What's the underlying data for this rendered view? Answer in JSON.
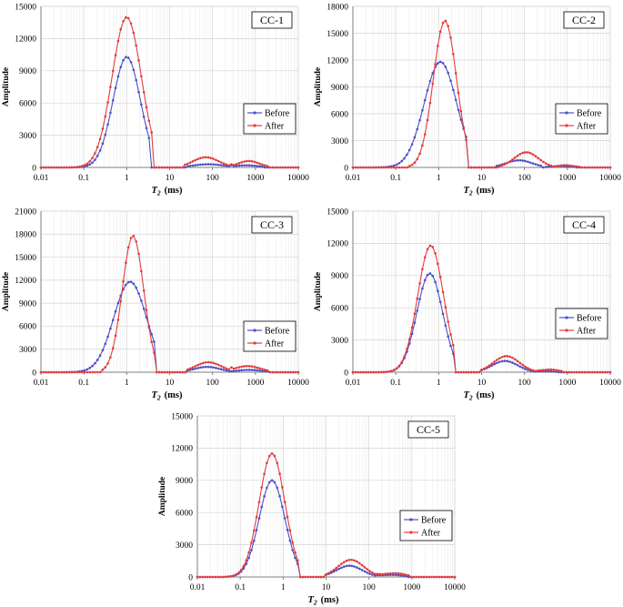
{
  "chart_data": [
    {
      "type": "line",
      "title": "CC-1",
      "xlabel": "T2 (ms)",
      "xlabel_main": "T",
      "xlabel_sub": "2",
      "xlabel_unit": "(ms)",
      "ylabel": "Amplitude",
      "xscale": "log",
      "xlim": [
        0.01,
        10000
      ],
      "xticks": [
        "0.01",
        "0.1",
        "1",
        "10",
        "100",
        "1000",
        "10000"
      ],
      "ylim": [
        0,
        15000
      ],
      "yticks": [
        "0",
        "3000",
        "6000",
        "9000",
        "12000",
        "15000"
      ],
      "grid": true,
      "legend_position": "right",
      "series": [
        {
          "name": "Before",
          "color": "#4a4fc8",
          "peaks": [
            {
              "x0": 1.0,
              "height": 10300,
              "width": 0.32,
              "lo": 0.05,
              "hi": 3.8
            },
            {
              "x0": 80,
              "height": 300,
              "width": 0.35,
              "lo": 25,
              "hi": 300
            },
            {
              "x0": 600,
              "height": 200,
              "width": 0.3,
              "lo": 250,
              "hi": 1500
            }
          ]
        },
        {
          "name": "After",
          "color": "#e23c3c",
          "peaks": [
            {
              "x0": 1.0,
              "height": 14000,
              "width": 0.34,
              "lo": 0.05,
              "hi": 4.2
            },
            {
              "x0": 70,
              "height": 950,
              "width": 0.3,
              "lo": 20,
              "hi": 300
            },
            {
              "x0": 700,
              "height": 600,
              "width": 0.25,
              "lo": 250,
              "hi": 2000
            }
          ]
        }
      ]
    },
    {
      "type": "line",
      "title": "CC-2",
      "xlabel": "T2 (ms)",
      "xlabel_main": "T",
      "xlabel_sub": "2",
      "xlabel_unit": "(ms)",
      "ylabel": "Amplitude",
      "xscale": "log",
      "xlim": [
        0.01,
        10000
      ],
      "xticks": [
        "0.01",
        "0.1",
        "1",
        "10",
        "100",
        "1000",
        "10000"
      ],
      "ylim": [
        0,
        18000
      ],
      "yticks": [
        "0",
        "3000",
        "6000",
        "9000",
        "12000",
        "15000",
        "18000"
      ],
      "grid": true,
      "legend_position": "right",
      "series": [
        {
          "name": "Before",
          "color": "#4a4fc8",
          "peaks": [
            {
              "x0": 1.1,
              "height": 11800,
              "width": 0.38,
              "lo": 0.03,
              "hi": 4.5
            },
            {
              "x0": 75,
              "height": 800,
              "width": 0.3,
              "lo": 20,
              "hi": 250
            },
            {
              "x0": 700,
              "height": 150,
              "width": 0.25,
              "lo": 300,
              "hi": 1500
            }
          ]
        },
        {
          "name": "After",
          "color": "#e23c3c",
          "peaks": [
            {
              "x0": 1.4,
              "height": 16400,
              "width": 0.27,
              "lo": 0.2,
              "hi": 4.8
            },
            {
              "x0": 110,
              "height": 1700,
              "width": 0.28,
              "lo": 25,
              "hi": 450
            },
            {
              "x0": 900,
              "height": 250,
              "width": 0.2,
              "lo": 450,
              "hi": 2000
            }
          ]
        }
      ]
    },
    {
      "type": "line",
      "title": "CC-3",
      "xlabel": "T2 (ms)",
      "xlabel_main": "T",
      "xlabel_sub": "2",
      "xlabel_unit": "(ms)",
      "ylabel": "Amplitude",
      "xscale": "log",
      "xlim": [
        0.01,
        10000
      ],
      "xticks": [
        "0.01",
        "0.1",
        "1",
        "10",
        "100",
        "1000",
        "10000"
      ],
      "ylim": [
        0,
        21000
      ],
      "yticks": [
        "0",
        "3000",
        "6000",
        "9000",
        "12000",
        "15000",
        "18000",
        "21000"
      ],
      "grid": true,
      "legend_position": "right",
      "series": [
        {
          "name": "Before",
          "color": "#4a4fc8",
          "peaks": [
            {
              "x0": 1.2,
              "height": 11800,
              "width": 0.38,
              "lo": 0.03,
              "hi": 5.0
            },
            {
              "x0": 75,
              "height": 700,
              "width": 0.3,
              "lo": 25,
              "hi": 250
            },
            {
              "x0": 700,
              "height": 300,
              "width": 0.3,
              "lo": 250,
              "hi": 2000
            }
          ]
        },
        {
          "name": "After",
          "color": "#e23c3c",
          "peaks": [
            {
              "x0": 1.4,
              "height": 17800,
              "width": 0.25,
              "lo": 0.25,
              "hi": 5.0
            },
            {
              "x0": 80,
              "height": 1300,
              "width": 0.3,
              "lo": 25,
              "hi": 300
            },
            {
              "x0": 650,
              "height": 800,
              "width": 0.3,
              "lo": 250,
              "hi": 2000
            }
          ]
        }
      ]
    },
    {
      "type": "line",
      "title": "CC-4",
      "xlabel": "T2 (ms)",
      "xlabel_main": "T",
      "xlabel_sub": "2",
      "xlabel_unit": "(ms)",
      "ylabel": "Amplitude",
      "xscale": "log",
      "xlim": [
        0.01,
        10000
      ],
      "xticks": [
        "0.01",
        "0.1",
        "1",
        "10",
        "100",
        "1000",
        "10000"
      ],
      "ylim": [
        0,
        15000
      ],
      "yticks": [
        "0",
        "3000",
        "6000",
        "9000",
        "12000",
        "15000"
      ],
      "grid": true,
      "legend_position": "right",
      "series": [
        {
          "name": "Before",
          "color": "#4a4fc8",
          "peaks": [
            {
              "x0": 0.62,
              "height": 9200,
              "width": 0.3,
              "lo": 0.04,
              "hi": 2.2
            },
            {
              "x0": 35,
              "height": 1050,
              "width": 0.3,
              "lo": 10,
              "hi": 200
            },
            {
              "x0": 300,
              "height": 100,
              "width": 0.2,
              "lo": 200,
              "hi": 600
            }
          ]
        },
        {
          "name": "After",
          "color": "#e23c3c",
          "peaks": [
            {
              "x0": 0.65,
              "height": 11800,
              "width": 0.3,
              "lo": 0.04,
              "hi": 2.4
            },
            {
              "x0": 38,
              "height": 1500,
              "width": 0.3,
              "lo": 10,
              "hi": 300
            },
            {
              "x0": 400,
              "height": 250,
              "width": 0.2,
              "lo": 200,
              "hi": 800
            }
          ]
        }
      ]
    },
    {
      "type": "line",
      "title": "CC-5",
      "xlabel": "T2 (ms)",
      "xlabel_main": "T",
      "xlabel_sub": "2",
      "xlabel_unit": "(ms)",
      "ylabel": "Amplitude",
      "xscale": "log",
      "xlim": [
        0.01,
        10000
      ],
      "xticks": [
        "0.01",
        "0.1",
        "1",
        "10",
        "100",
        "1000",
        "10000"
      ],
      "ylim": [
        0,
        15000
      ],
      "yticks": [
        "0",
        "3000",
        "6000",
        "9000",
        "12000",
        "15000"
      ],
      "grid": true,
      "legend_position": "lower-right",
      "series": [
        {
          "name": "Before",
          "color": "#4a4fc8",
          "peaks": [
            {
              "x0": 0.55,
              "height": 9000,
              "width": 0.3,
              "lo": 0.04,
              "hi": 2.2
            },
            {
              "x0": 35,
              "height": 1050,
              "width": 0.3,
              "lo": 10,
              "hi": 250
            },
            {
              "x0": 350,
              "height": 200,
              "width": 0.25,
              "lo": 150,
              "hi": 800
            }
          ]
        },
        {
          "name": "After",
          "color": "#e23c3c",
          "peaks": [
            {
              "x0": 0.55,
              "height": 11500,
              "width": 0.3,
              "lo": 0.04,
              "hi": 2.3
            },
            {
              "x0": 38,
              "height": 1600,
              "width": 0.3,
              "lo": 10,
              "hi": 300
            },
            {
              "x0": 400,
              "height": 350,
              "width": 0.25,
              "lo": 150,
              "hi": 900
            }
          ]
        }
      ]
    }
  ]
}
